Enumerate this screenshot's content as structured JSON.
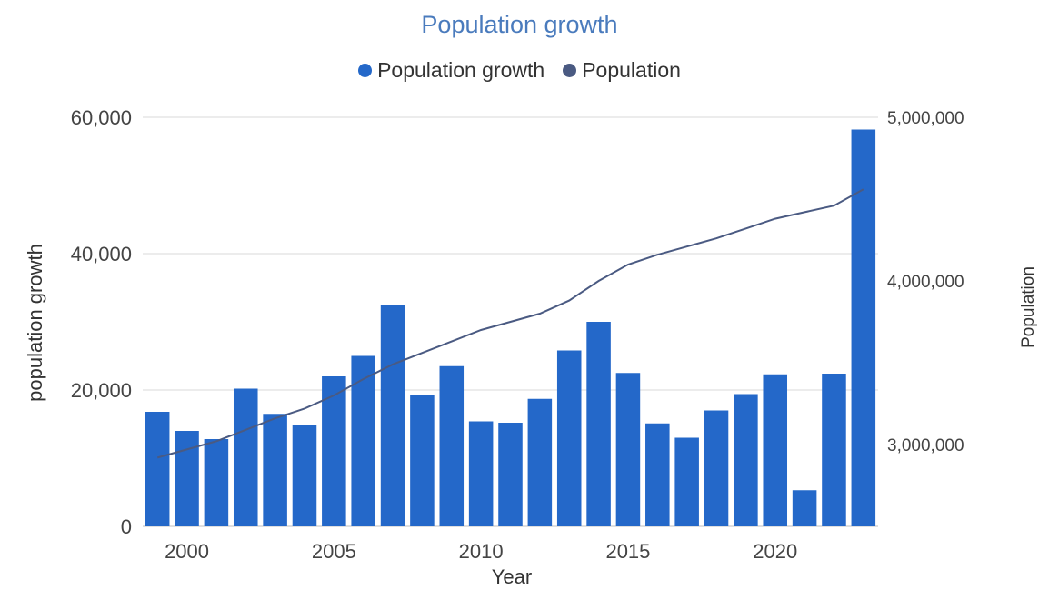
{
  "chart_data": {
    "type": "bar",
    "title": "Population growth",
    "xlabel": "Year",
    "ylabel": "population growth",
    "y2label": "Population",
    "x": [
      1999,
      2000,
      2001,
      2002,
      2003,
      2004,
      2005,
      2006,
      2007,
      2008,
      2009,
      2010,
      2011,
      2012,
      2013,
      2014,
      2015,
      2016,
      2017,
      2018,
      2019,
      2020,
      2021,
      2022,
      2023
    ],
    "x_ticks": [
      2000,
      2005,
      2010,
      2015,
      2020
    ],
    "ylim": [
      0,
      60000
    ],
    "y_ticks": [
      0,
      20000,
      40000,
      60000
    ],
    "y_tick_labels": [
      "0",
      "20,000",
      "40,000",
      "60,000"
    ],
    "y2lim": [
      2500000,
      5000000
    ],
    "y2_ticks": [
      3000000,
      4000000,
      5000000
    ],
    "y2_tick_labels": [
      "3,000,000",
      "4,000,000",
      "5,000,000"
    ],
    "grid": true,
    "legend_position": "top-center",
    "series": [
      {
        "name": "Population growth",
        "type": "bar",
        "axis": "left",
        "color": "#2468c9",
        "values": [
          16800,
          14000,
          12800,
          20200,
          16500,
          14800,
          22000,
          25000,
          32500,
          19300,
          23500,
          15400,
          15200,
          18700,
          25800,
          30000,
          22500,
          15100,
          13000,
          17000,
          19400,
          22300,
          5300,
          22400,
          58200
        ]
      },
      {
        "name": "Population",
        "type": "line",
        "axis": "right",
        "color": "#4a5a82",
        "values": [
          2920000,
          2970000,
          3020000,
          3090000,
          3160000,
          3220000,
          3300000,
          3400000,
          3490000,
          3560000,
          3630000,
          3700000,
          3750000,
          3800000,
          3880000,
          4000000,
          4100000,
          4160000,
          4210000,
          4260000,
          4320000,
          4380000,
          4420000,
          4460000,
          4560000
        ]
      }
    ]
  }
}
